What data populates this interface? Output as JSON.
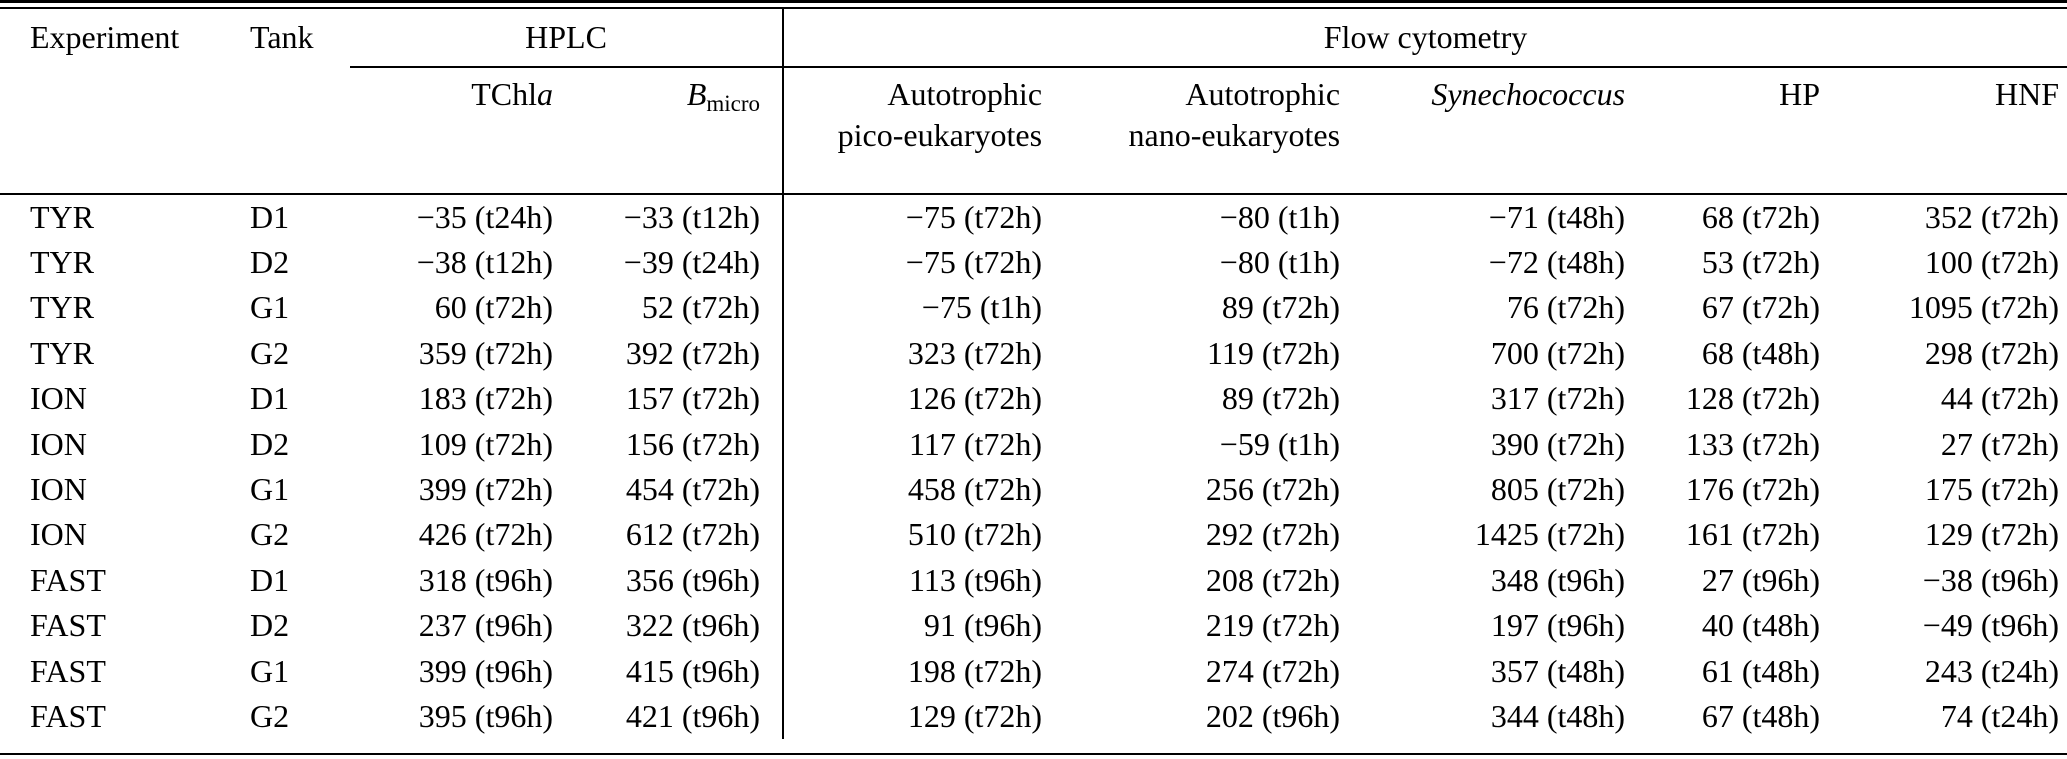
{
  "table": {
    "headers": {
      "experiment": "Experiment",
      "tank": "Tank",
      "hplc": "HPLC",
      "flow_cytometry": "Flow cytometry",
      "tchla_roman": "TChl",
      "tchla_italic": "a",
      "bmicro_symbol": "B",
      "bmicro_subscript": "micro",
      "pico_line1": "Autotrophic",
      "pico_line2": "pico-eukaryotes",
      "nano_line1": "Autotrophic",
      "nano_line2": "nano-eukaryotes",
      "synechococcus": "Synechococcus",
      "hp": "HP",
      "hnf": "HNF"
    },
    "rows": [
      {
        "experiment": "TYR",
        "tank": "D1",
        "tchla": "−35 (t24h)",
        "bmicro": "−33 (t12h)",
        "pico": "−75 (t72h)",
        "nano": "−80 (t1h)",
        "synechococcus": "−71 (t48h)",
        "hp": "68 (t72h)",
        "hnf": "352 (t72h)"
      },
      {
        "experiment": "TYR",
        "tank": "D2",
        "tchla": "−38 (t12h)",
        "bmicro": "−39 (t24h)",
        "pico": "−75 (t72h)",
        "nano": "−80 (t1h)",
        "synechococcus": "−72 (t48h)",
        "hp": "53 (t72h)",
        "hnf": "100 (t72h)"
      },
      {
        "experiment": "TYR",
        "tank": "G1",
        "tchla": "60 (t72h)",
        "bmicro": "52 (t72h)",
        "pico": "−75 (t1h)",
        "nano": "89 (t72h)",
        "synechococcus": "76 (t72h)",
        "hp": "67 (t72h)",
        "hnf": "1095 (t72h)"
      },
      {
        "experiment": "TYR",
        "tank": "G2",
        "tchla": "359 (t72h)",
        "bmicro": "392 (t72h)",
        "pico": "323 (t72h)",
        "nano": "119 (t72h)",
        "synechococcus": "700 (t72h)",
        "hp": "68 (t48h)",
        "hnf": "298 (t72h)"
      },
      {
        "experiment": "ION",
        "tank": "D1",
        "tchla": "183 (t72h)",
        "bmicro": "157 (t72h)",
        "pico": "126 (t72h)",
        "nano": "89 (t72h)",
        "synechococcus": "317 (t72h)",
        "hp": "128 (t72h)",
        "hnf": "44 (t72h)"
      },
      {
        "experiment": "ION",
        "tank": "D2",
        "tchla": "109 (t72h)",
        "bmicro": "156 (t72h)",
        "pico": "117 (t72h)",
        "nano": "−59 (t1h)",
        "synechococcus": "390 (t72h)",
        "hp": "133 (t72h)",
        "hnf": "27 (t72h)"
      },
      {
        "experiment": "ION",
        "tank": "G1",
        "tchla": "399 (t72h)",
        "bmicro": "454 (t72h)",
        "pico": "458 (t72h)",
        "nano": "256 (t72h)",
        "synechococcus": "805 (t72h)",
        "hp": "176 (t72h)",
        "hnf": "175 (t72h)"
      },
      {
        "experiment": "ION",
        "tank": "G2",
        "tchla": "426 (t72h)",
        "bmicro": "612 (t72h)",
        "pico": "510 (t72h)",
        "nano": "292 (t72h)",
        "synechococcus": "1425 (t72h)",
        "hp": "161 (t72h)",
        "hnf": "129 (t72h)"
      },
      {
        "experiment": "FAST",
        "tank": "D1",
        "tchla": "318 (t96h)",
        "bmicro": "356 (t96h)",
        "pico": "113 (t96h)",
        "nano": "208 (t72h)",
        "synechococcus": "348 (t96h)",
        "hp": "27 (t96h)",
        "hnf": "−38 (t96h)"
      },
      {
        "experiment": "FAST",
        "tank": "D2",
        "tchla": "237 (t96h)",
        "bmicro": "322 (t96h)",
        "pico": "91 (t96h)",
        "nano": "219 (t72h)",
        "synechococcus": "197 (t96h)",
        "hp": "40 (t48h)",
        "hnf": "−49 (t96h)"
      },
      {
        "experiment": "FAST",
        "tank": "G1",
        "tchla": "399 (t96h)",
        "bmicro": "415 (t96h)",
        "pico": "198 (t72h)",
        "nano": "274 (t72h)",
        "synechococcus": "357 (t48h)",
        "hp": "61 (t48h)",
        "hnf": "243 (t24h)"
      },
      {
        "experiment": "FAST",
        "tank": "G2",
        "tchla": "395 (t96h)",
        "bmicro": "421 (t96h)",
        "pico": "129 (t72h)",
        "nano": "202 (t96h)",
        "synechococcus": "344 (t48h)",
        "hp": "67 (t48h)",
        "hnf": "74 (t24h)"
      }
    ]
  }
}
